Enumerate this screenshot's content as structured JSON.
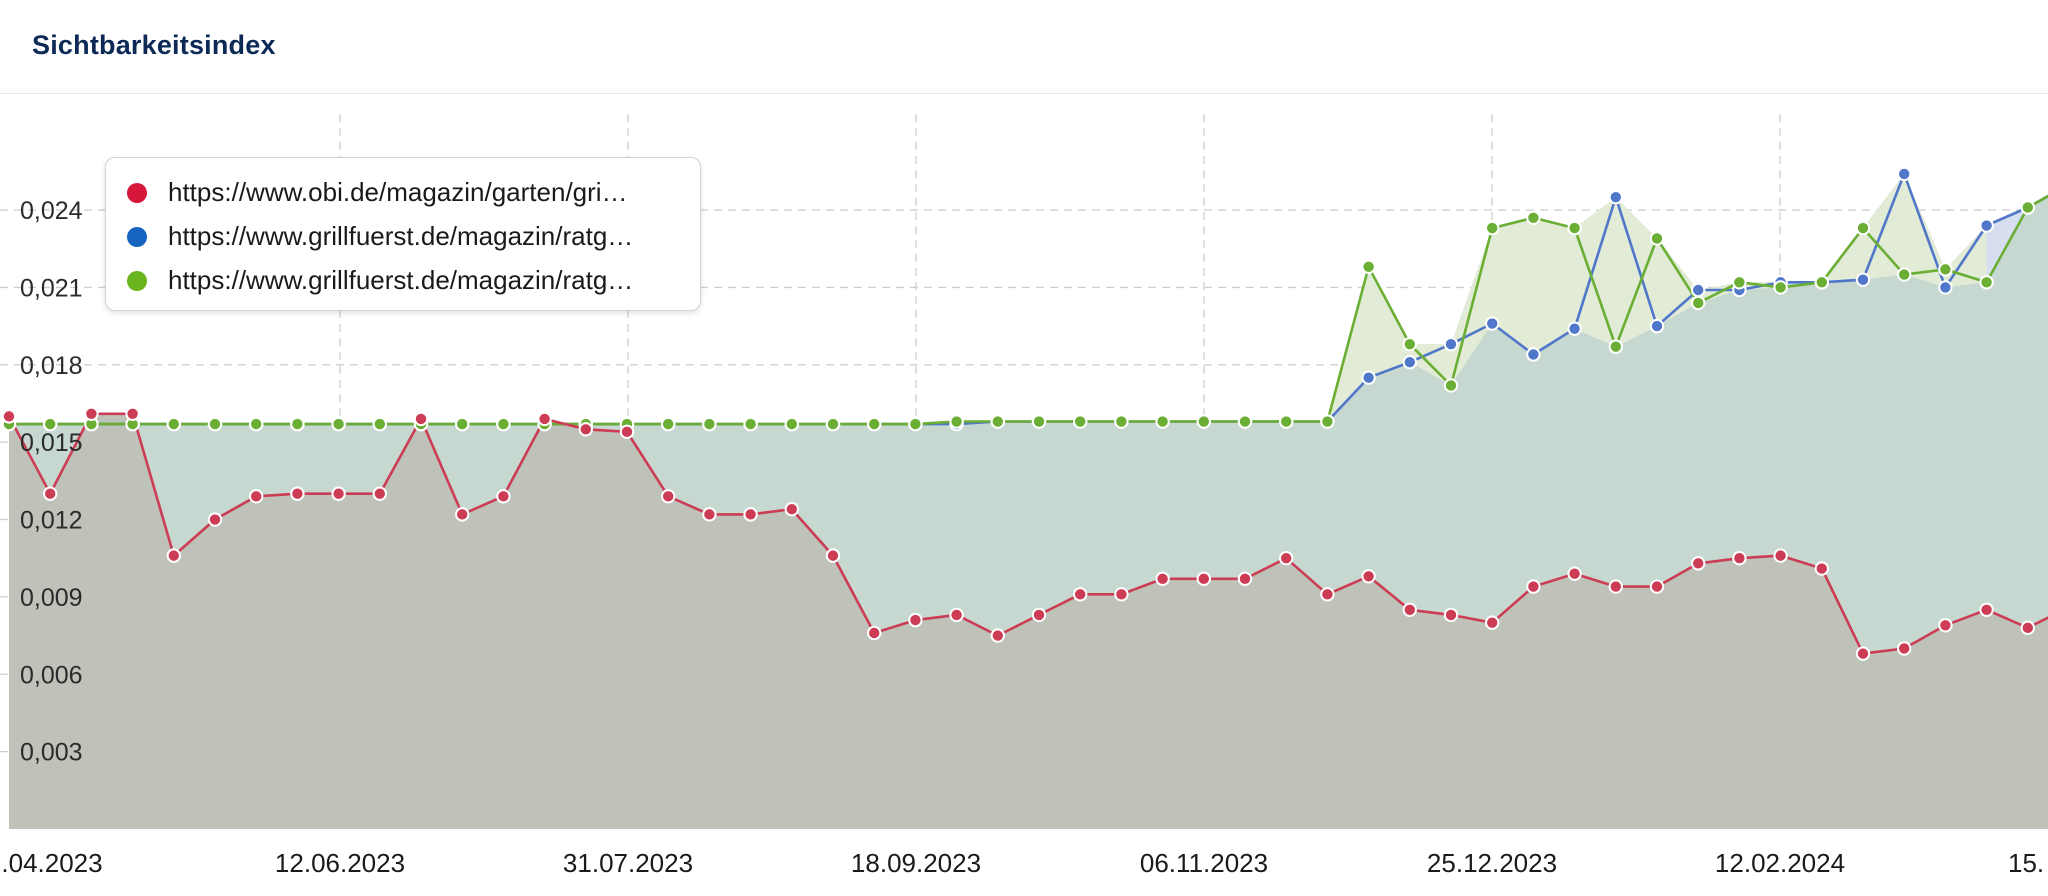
{
  "header": {
    "title": "Sichtbarkeitsindex"
  },
  "legend": {
    "items": [
      {
        "label": "https://www.obi.de/magazin/garten/gri…",
        "color": "#d6173a"
      },
      {
        "label": "https://www.grillfuerst.de/magazin/ratg…",
        "color": "#1565c0"
      },
      {
        "label": "https://www.grillfuerst.de/magazin/ratg…",
        "color": "#6ab51e"
      }
    ]
  },
  "chart_data": {
    "type": "area",
    "title": "Sichtbarkeitsindex",
    "xlabel": "",
    "ylabel": "",
    "ylim": [
      0,
      0.0285
    ],
    "y_ticks": [
      0.003,
      0.006,
      0.009,
      0.012,
      0.015,
      0.018,
      0.021,
      0.024
    ],
    "y_tick_labels": [
      "0,003",
      "0,006",
      "0,009",
      "0,012",
      "0,015",
      "0,018",
      "0,021",
      "0,024"
    ],
    "x_tick_labels": [
      ".04.2023",
      "12.06.2023",
      "31.07.2023",
      "18.09.2023",
      "06.11.2023",
      "25.12.2023",
      "12.02.2024",
      "15."
    ],
    "grid": true,
    "legend_position": "top-left",
    "colors": {
      "red_line": "#cc3d55",
      "blue_line": "#5077c9",
      "green_line": "#6aae34",
      "base_fill": "#bec2b8",
      "common_fill": "#c6d8cf",
      "green_only_fill": "#e1ebd5",
      "blue_only_fill": "#d7def0"
    },
    "series": [
      {
        "color": "#d6173a",
        "values": [
          0.016,
          0.013,
          0.0161,
          0.0161,
          0.0106,
          0.012,
          0.0129,
          0.013,
          0.013,
          0.013,
          0.0159,
          0.0122,
          0.0129,
          0.0159,
          0.0155,
          0.0154,
          0.0129,
          0.0122,
          0.0122,
          0.0124,
          0.0106,
          0.0076,
          0.0081,
          0.0083,
          0.0075,
          0.0083,
          0.0091,
          0.0091,
          0.0097,
          0.0097,
          0.0097,
          0.0105,
          0.0091,
          0.0098,
          0.0085,
          0.0083,
          0.008,
          0.0094,
          0.0099,
          0.0094,
          0.0094,
          0.0103,
          0.0105,
          0.0106,
          0.0101,
          0.0068,
          0.007,
          0.0079,
          0.0085,
          0.0078,
          0.0086
        ]
      },
      {
        "color": "#1565c0",
        "values": [
          0.0157,
          0.0157,
          0.0157,
          0.0157,
          0.0157,
          0.0157,
          0.0157,
          0.0157,
          0.0157,
          0.0157,
          0.0157,
          0.0157,
          0.0157,
          0.0157,
          0.0157,
          0.0157,
          0.0157,
          0.0157,
          0.0157,
          0.0157,
          0.0157,
          0.0157,
          0.0157,
          0.0157,
          0.0158,
          0.0158,
          0.0158,
          0.0158,
          0.0158,
          0.0158,
          0.0158,
          0.0158,
          0.0158,
          0.0175,
          0.0181,
          0.0188,
          0.0196,
          0.0184,
          0.0194,
          0.0245,
          0.0195,
          0.0209,
          0.0209,
          0.0212,
          0.0212,
          0.0213,
          0.0254,
          0.021,
          0.0234,
          0.0241,
          0.025
        ]
      },
      {
        "color": "#6ab51e",
        "values": [
          0.0157,
          0.0157,
          0.0157,
          0.0157,
          0.0157,
          0.0157,
          0.0157,
          0.0157,
          0.0157,
          0.0157,
          0.0157,
          0.0157,
          0.0157,
          0.0157,
          0.0157,
          0.0157,
          0.0157,
          0.0157,
          0.0157,
          0.0157,
          0.0157,
          0.0157,
          0.0157,
          0.0158,
          0.0158,
          0.0158,
          0.0158,
          0.0158,
          0.0158,
          0.0158,
          0.0158,
          0.0158,
          0.0158,
          0.0218,
          0.0188,
          0.0172,
          0.0233,
          0.0237,
          0.0233,
          0.0187,
          0.0229,
          0.0204,
          0.0212,
          0.021,
          0.0212,
          0.0233,
          0.0215,
          0.0217,
          0.0212,
          0.0241,
          0.025
        ]
      }
    ]
  }
}
